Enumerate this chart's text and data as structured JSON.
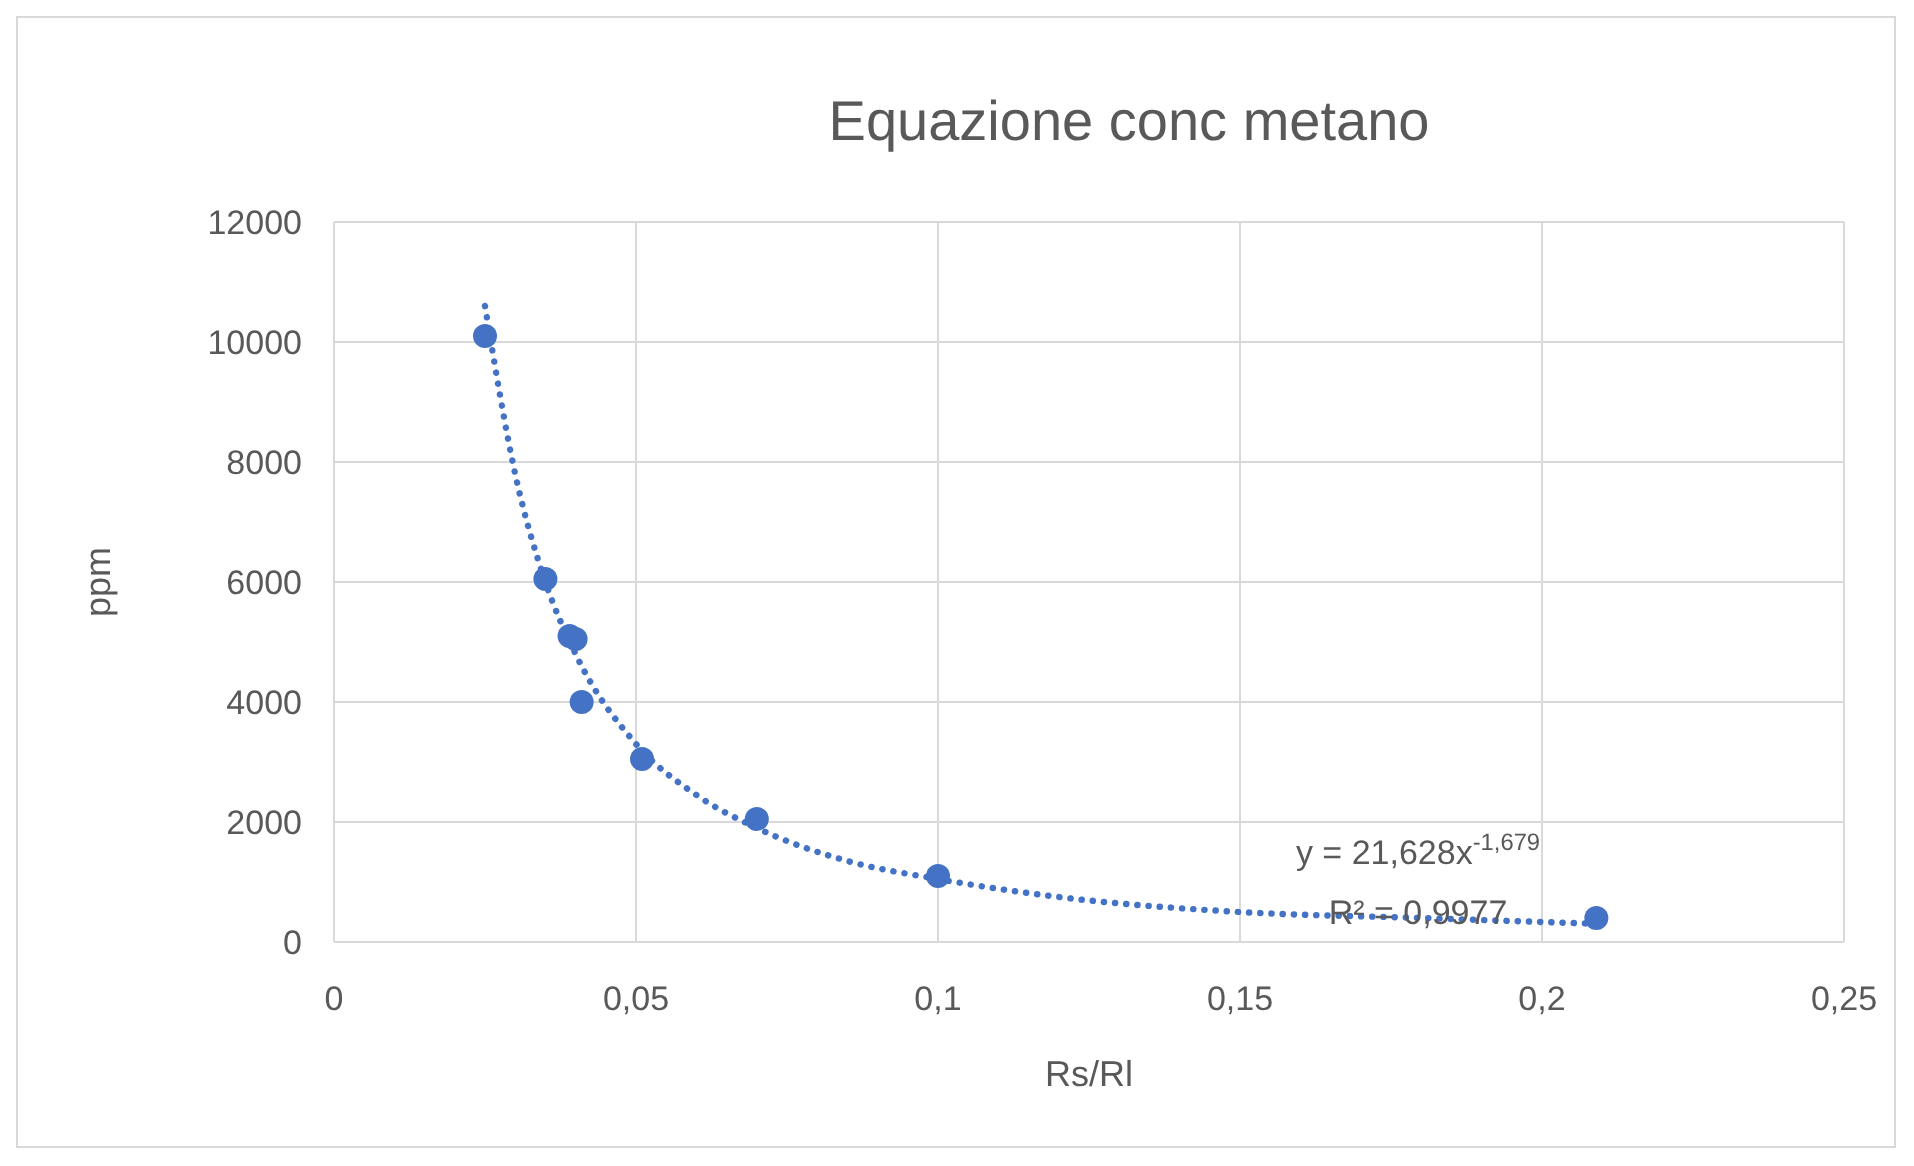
{
  "chart_data": {
    "type": "scatter",
    "title": "Equazione conc metano",
    "xlabel": "Rs/Rl",
    "ylabel": "ppm",
    "xlim": [
      0,
      0.25
    ],
    "xticks": [
      {
        "value": 0,
        "label": "0"
      },
      {
        "value": 0.05,
        "label": "0,05"
      },
      {
        "value": 0.1,
        "label": "0,1"
      },
      {
        "value": 0.15,
        "label": "0,15"
      },
      {
        "value": 0.2,
        "label": "0,2"
      },
      {
        "value": 0.25,
        "label": "0,25"
      }
    ],
    "ylim": [
      0,
      12000
    ],
    "yticks": [
      0,
      2000,
      4000,
      6000,
      8000,
      10000,
      12000
    ],
    "grid": true,
    "series": [
      {
        "color": "#4472c4",
        "marker": "circle",
        "x": [
          0.025,
          0.035,
          0.039,
          0.04,
          0.041,
          0.051,
          0.07,
          0.1,
          0.209
        ],
        "values": [
          10100,
          6050,
          5100,
          5050,
          4000,
          3050,
          2050,
          1100,
          400
        ]
      },
      {
        "type": "line",
        "color": "#4472c4",
        "marker": "none",
        "line_style": "dotted",
        "x": [
          0.025,
          0.03,
          0.035,
          0.04,
          0.05,
          0.06,
          0.07,
          0.085,
          0.1,
          0.12,
          0.15,
          0.18,
          0.21
        ],
        "values": [
          10600,
          7800,
          6000,
          4800,
          3300,
          2450,
          1900,
          1350,
          1050,
          750,
          500,
          400,
          300
        ]
      }
    ],
    "annotations": [
      "y = 21,628x$^{-1,679}$",
      "R² = 0,9977"
    ]
  }
}
